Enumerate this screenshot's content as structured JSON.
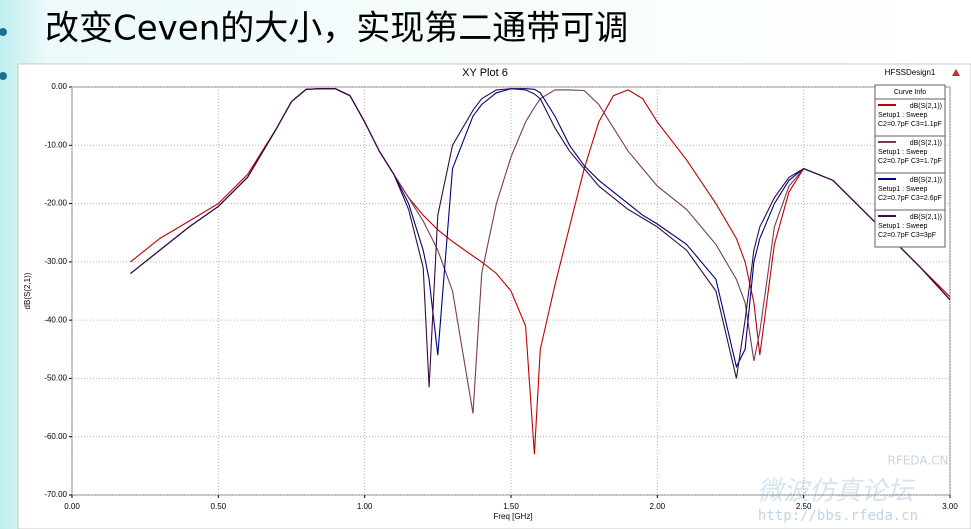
{
  "slide_title": "改变Ceven的大小，实现第二通带可调",
  "watermark": {
    "site": "RFEDA.CN",
    "forum": "微波仿真论坛",
    "url": "http://bbs.rfeda.cn"
  },
  "chart_data": {
    "type": "line",
    "title": "XY Plot 6",
    "design": "HFSSDesign1",
    "x_label": "Freq [GHz]",
    "y_label": "dB(S(2,1))",
    "legend_title": "Curve Info",
    "legend_position": "upper right",
    "grid": true,
    "xlim": [
      0,
      3
    ],
    "ylim": [
      -70,
      0
    ],
    "xticks": [
      {
        "value": 0,
        "label": "0.00"
      },
      {
        "value": 0.5,
        "label": "0.50"
      },
      {
        "value": 1,
        "label": "1.00"
      },
      {
        "value": 1.5,
        "label": "1.50"
      },
      {
        "value": 2,
        "label": "2.00"
      },
      {
        "value": 2.5,
        "label": "2.50"
      },
      {
        "value": 3,
        "label": "3.00"
      }
    ],
    "yticks": [
      {
        "value": 0,
        "label": "0.00"
      },
      {
        "value": -10,
        "label": "-10.00"
      },
      {
        "value": -20,
        "label": "-20.00"
      },
      {
        "value": -30,
        "label": "-30.00"
      },
      {
        "value": -40,
        "label": "-40.00"
      },
      {
        "value": -50,
        "label": "-50.00"
      },
      {
        "value": -60,
        "label": "-60.00"
      },
      {
        "value": -70,
        "label": "-70.00"
      }
    ],
    "x": [
      0.2,
      0.3,
      0.4,
      0.5,
      0.6,
      0.7,
      0.75,
      0.8,
      0.85,
      0.9,
      0.95,
      1.0,
      1.05,
      1.1,
      1.15,
      1.2,
      1.22,
      1.25,
      1.3,
      1.37,
      1.4,
      1.45,
      1.5,
      1.55,
      1.58,
      1.6,
      1.65,
      1.7,
      1.75,
      1.8,
      1.85,
      1.9,
      1.95,
      2.0,
      2.1,
      2.2,
      2.27,
      2.3,
      2.33,
      2.35,
      2.4,
      2.45,
      2.5,
      2.6,
      2.7,
      2.8,
      2.9,
      3.0
    ],
    "series": [
      {
        "name": "dB(S(2,1))",
        "sweep": "Setup1 : Sweep",
        "params": "C2=0.7pF C3=1.1pF",
        "color": "#c00000",
        "values": [
          -30,
          -26,
          -23,
          -20,
          -15,
          -7,
          -2.5,
          -0.4,
          -0.3,
          -0.3,
          -1.5,
          -6,
          -11,
          -15,
          -19,
          -22,
          -23,
          -24.5,
          -26.5,
          -29,
          -30,
          -32,
          -35,
          -41,
          -63,
          -45,
          -34,
          -24,
          -14,
          -6,
          -1.5,
          -0.5,
          -2,
          -6,
          -12.5,
          -20,
          -26,
          -30,
          -37,
          -46,
          -27,
          -18,
          -14,
          -16,
          -21,
          -26,
          -31,
          -36
        ]
      },
      {
        "name": "dB(S(2,1))",
        "sweep": "Setup1 : Sweep",
        "params": "C2=0.7pF C3=1.7pF",
        "color": "#7a3a5a",
        "values": [
          -32,
          -28,
          -24,
          -20.5,
          -15.5,
          -7,
          -2.5,
          -0.4,
          -0.3,
          -0.3,
          -1.5,
          -6,
          -11,
          -15,
          -19,
          -23,
          -25,
          -28,
          -35,
          -56,
          -32,
          -20,
          -12,
          -6,
          -3.5,
          -2,
          -0.5,
          -0.5,
          -0.6,
          -3,
          -7,
          -11,
          -14,
          -17,
          -21,
          -27,
          -33,
          -37,
          -47,
          -42,
          -24,
          -17,
          -14,
          -16,
          -21,
          -26,
          -31,
          -36.5
        ]
      },
      {
        "name": "dB(S(2,1))",
        "sweep": "Setup1 : Sweep",
        "params": "C2=0.7pF C3=2.6pF",
        "color": "#000080",
        "values": [
          -32,
          -28,
          -24,
          -20.5,
          -15.5,
          -7,
          -2.5,
          -0.4,
          -0.3,
          -0.3,
          -1.5,
          -6,
          -11,
          -15,
          -20,
          -28,
          -33,
          -46,
          -14,
          -5,
          -3,
          -1,
          -0.3,
          -0.3,
          -0.4,
          -1,
          -5,
          -10,
          -13.5,
          -16,
          -18,
          -20,
          -22,
          -23.5,
          -27,
          -33,
          -48,
          -45,
          -30,
          -26,
          -20,
          -16,
          -14,
          -16,
          -21,
          -26,
          -31,
          -36.5
        ]
      },
      {
        "name": "dB(S(2,1))",
        "sweep": "Setup1 : Sweep",
        "params": "C2=0.7pF C3=3pF",
        "color": "#3a0a40",
        "values": [
          -32,
          -28,
          -24,
          -20.5,
          -15.5,
          -7,
          -2.5,
          -0.4,
          -0.3,
          -0.3,
          -1.5,
          -6,
          -11,
          -15,
          -21,
          -31,
          -51.5,
          -22,
          -10,
          -4,
          -2,
          -0.5,
          -0.3,
          -0.5,
          -1.2,
          -2,
          -7,
          -11,
          -14,
          -17,
          -19,
          -21,
          -22.5,
          -24,
          -28,
          -35,
          -50,
          -40,
          -28,
          -24,
          -19,
          -15.5,
          -14,
          -16,
          -21,
          -26,
          -31,
          -36.5
        ]
      }
    ]
  }
}
